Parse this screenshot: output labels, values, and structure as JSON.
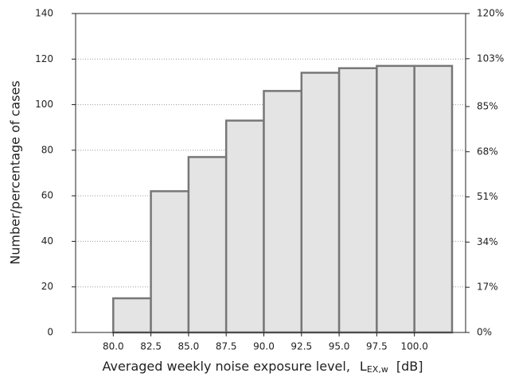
{
  "chart_data": {
    "type": "histogram",
    "bins": [
      80,
      82.5,
      85,
      87.5,
      90,
      92.5,
      95,
      97.5,
      100,
      102.5
    ],
    "values": [
      15,
      62,
      77,
      93,
      106,
      114,
      116,
      117,
      117
    ],
    "color": "#e4e4e4",
    "edge_color": "#777777",
    "xlim": [
      77.5,
      103.4
    ],
    "xticks": [
      {
        "value": 80,
        "label": "80.0"
      },
      {
        "value": 82.5,
        "label": "82.5"
      },
      {
        "value": 85,
        "label": "85.0"
      },
      {
        "value": 87.5,
        "label": "87.5"
      },
      {
        "value": 90,
        "label": "90.0"
      },
      {
        "value": 92.5,
        "label": "92.5"
      },
      {
        "value": 95,
        "label": "95.0"
      },
      {
        "value": 97.5,
        "label": "97.5"
      },
      {
        "value": 100,
        "label": "100.0"
      }
    ],
    "ylim": [
      0,
      140
    ],
    "yticks": [
      0,
      20,
      40,
      60,
      80,
      100,
      120,
      140
    ],
    "y2lim": [
      0,
      120
    ],
    "y2ticks": [
      {
        "value": 0,
        "label": "0%"
      },
      {
        "value": 17,
        "label": "17%"
      },
      {
        "value": 34,
        "label": "34%"
      },
      {
        "value": 51,
        "label": "51%"
      },
      {
        "value": 68,
        "label": "68%"
      },
      {
        "value": 85,
        "label": "85%"
      },
      {
        "value": 103,
        "label": "103%"
      },
      {
        "value": 120,
        "label": "120%"
      }
    ],
    "grid": true,
    "ylabel": "Number/percentage of cases",
    "xlabel": {
      "text": "Averaged weekly noise exposure level,",
      "symbol": "L",
      "subscript": "EX,w",
      "unit": "[dB]"
    }
  }
}
